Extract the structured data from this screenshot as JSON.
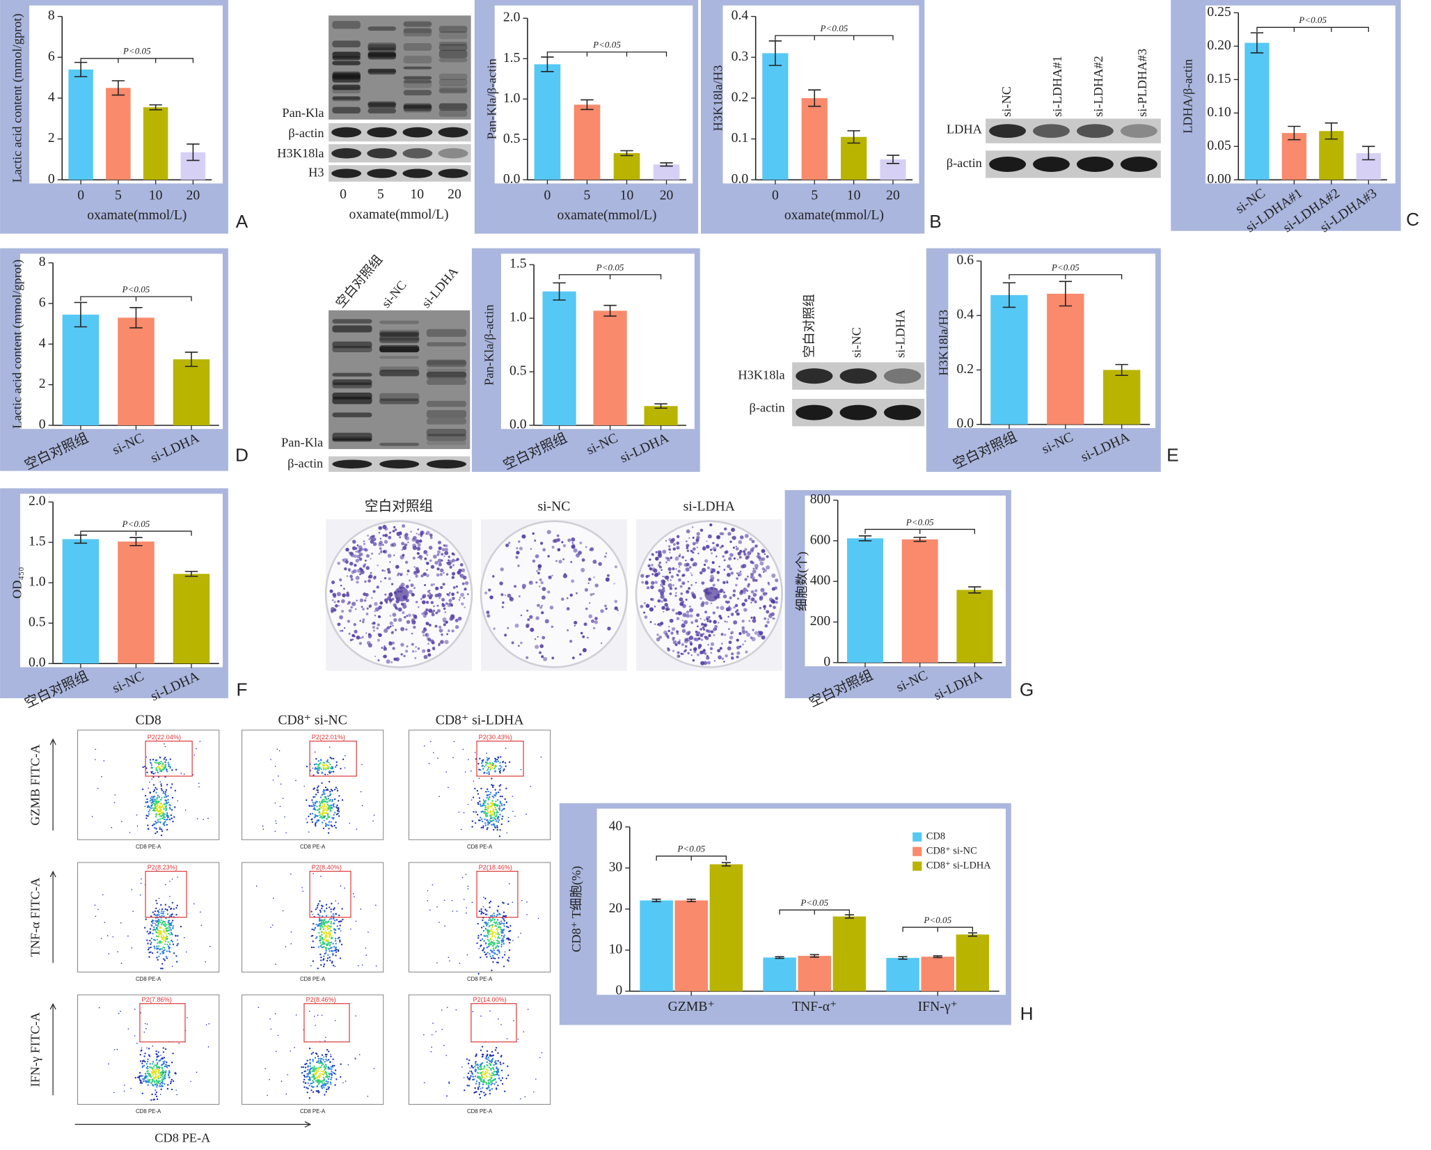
{
  "chart_data": [
    {
      "type": "bar",
      "y_label": "Lactic acid content (mmol/gprot)",
      "x_label": "oxamate(mmol/L)",
      "categories": [
        "0",
        "5",
        "10",
        "20"
      ],
      "values": [
        5.4,
        4.5,
        3.55,
        1.35
      ],
      "errors": [
        0.35,
        0.35,
        0.12,
        0.4
      ],
      "colors": [
        "#55c8f5",
        "#f98a6c",
        "#b9b400",
        "#d6d0f5"
      ],
      "ylim": [
        0,
        8
      ],
      "yticks": [
        0,
        2,
        4,
        6,
        8
      ],
      "annotation": "P<0.05"
    },
    {
      "type": "bar",
      "y_label": "Pan-Kla/β-actin",
      "x_label": "oxamate(mmol/L)",
      "categories": [
        "0",
        "5",
        "10",
        "20"
      ],
      "values": [
        1.43,
        0.93,
        0.33,
        0.19
      ],
      "errors": [
        0.09,
        0.06,
        0.03,
        0.02
      ],
      "colors": [
        "#55c8f5",
        "#f98a6c",
        "#b9b400",
        "#d6d0f5"
      ],
      "ylim": [
        0,
        2
      ],
      "yticks": [
        {
          "value": 0,
          "label": "0.0"
        },
        0.5,
        {
          "value": 1,
          "label": "1.0"
        },
        1.5,
        {
          "value": 2,
          "label": "2.0"
        }
      ],
      "annotation": "P<0.05"
    },
    {
      "type": "bar",
      "y_label": "H3K18la/H3",
      "x_label": "oxamate(mmol/L)",
      "categories": [
        "0",
        "5",
        "10",
        "20"
      ],
      "values": [
        0.31,
        0.2,
        0.105,
        0.05
      ],
      "errors": [
        0.03,
        0.02,
        0.015,
        0.01
      ],
      "colors": [
        "#55c8f5",
        "#f98a6c",
        "#b9b400",
        "#d6d0f5"
      ],
      "ylim": [
        0,
        0.4
      ],
      "yticks": [
        {
          "value": 0,
          "label": "0.0"
        },
        0.1,
        0.2,
        0.3,
        0.4
      ],
      "annotation": "P<0.05"
    },
    {
      "type": "bar",
      "y_label": "LDHA/β-actin",
      "categories": [
        "si-NC",
        "si-LDHA#1",
        "si-LDHA#2",
        "si-LDHA#3"
      ],
      "values": [
        0.205,
        0.07,
        0.073,
        0.04
      ],
      "errors": [
        0.015,
        0.01,
        0.012,
        0.01
      ],
      "colors": [
        "#55c8f5",
        "#f98a6c",
        "#b9b400",
        "#d6d0f5"
      ],
      "ylim": [
        0,
        0.25
      ],
      "yticks": [
        {
          "value": 0,
          "label": "0.00"
        },
        0.05,
        {
          "value": 0.1,
          "label": "0.10"
        },
        0.15,
        {
          "value": 0.2,
          "label": "0.20"
        },
        0.25
      ],
      "annotation": "P<0.05"
    },
    {
      "type": "bar",
      "y_label": "Lactic acid content (mmol/gprot)",
      "categories": [
        "空白对照组",
        "si-NC",
        "si-LDHA"
      ],
      "values": [
        5.45,
        5.3,
        3.25
      ],
      "errors": [
        0.6,
        0.5,
        0.35
      ],
      "colors": [
        "#55c8f5",
        "#f98a6c",
        "#b9b400"
      ],
      "ylim": [
        0,
        8
      ],
      "yticks": [
        0,
        2,
        4,
        6,
        8
      ],
      "annotation": "P<0.05"
    },
    {
      "type": "bar",
      "y_label": "Pan-Kla/β-actin",
      "categories": [
        "空白对照组",
        "si-NC",
        "si-LDHA"
      ],
      "values": [
        1.25,
        1.07,
        0.18
      ],
      "errors": [
        0.08,
        0.05,
        0.02
      ],
      "colors": [
        "#55c8f5",
        "#f98a6c",
        "#b9b400"
      ],
      "ylim": [
        0,
        1.5
      ],
      "yticks": [
        {
          "value": 0,
          "label": "0.0"
        },
        0.5,
        {
          "value": 1,
          "label": "1.0"
        },
        1.5
      ],
      "annotation": "P<0.05"
    },
    {
      "type": "bar",
      "y_label": "H3K18la/H3",
      "categories": [
        "空白对照组",
        "si-NC",
        "si-LDHA"
      ],
      "values": [
        0.475,
        0.48,
        0.2
      ],
      "errors": [
        0.045,
        0.045,
        0.02
      ],
      "colors": [
        "#55c8f5",
        "#f98a6c",
        "#b9b400"
      ],
      "ylim": [
        0,
        0.6
      ],
      "yticks": [
        {
          "value": 0,
          "label": "0.0"
        },
        0.2,
        0.4,
        0.6
      ],
      "annotation": "P<0.05"
    },
    {
      "type": "bar",
      "y_label": "OD₄₅₀",
      "categories": [
        "空白对照组",
        "si-NC",
        "si-LDHA"
      ],
      "values": [
        1.54,
        1.51,
        1.11
      ],
      "errors": [
        0.05,
        0.05,
        0.03
      ],
      "colors": [
        "#55c8f5",
        "#f98a6c",
        "#b9b400"
      ],
      "ylim": [
        0,
        2
      ],
      "yticks": [
        {
          "value": 0,
          "label": "0.0"
        },
        0.5,
        {
          "value": 1,
          "label": "1.0"
        },
        1.5,
        {
          "value": 2,
          "label": "2.0"
        }
      ],
      "annotation": "P<0.05"
    },
    {
      "type": "bar",
      "y_label": "细胞数(个)",
      "categories": [
        "空白对照组",
        "si-NC",
        "si-LDHA"
      ],
      "values": [
        612,
        607,
        358
      ],
      "errors": [
        12,
        10,
        15
      ],
      "colors": [
        "#55c8f5",
        "#f98a6c",
        "#b9b400"
      ],
      "ylim": [
        0,
        800
      ],
      "yticks": [
        0,
        200,
        400,
        600,
        800
      ],
      "annotation": "P<0.05"
    },
    {
      "type": "grouped-bar",
      "y_label": "CD8⁺ T细胞(%)",
      "categories": [
        "GZMB⁺",
        "TNF-α⁺",
        "IFN-γ⁺"
      ],
      "series": [
        {
          "name": "CD8",
          "color": "#55c8f5",
          "values": [
            22.1,
            8.2,
            8.1
          ],
          "errors": [
            0.3,
            0.2,
            0.3
          ]
        },
        {
          "name": "CD8⁺ si-NC",
          "color": "#f98a6c",
          "values": [
            22.1,
            8.6,
            8.4
          ],
          "errors": [
            0.3,
            0.3,
            0.2
          ]
        },
        {
          "name": "CD8⁺ si-LDHA",
          "color": "#b9b400",
          "values": [
            30.9,
            18.2,
            13.8
          ],
          "errors": [
            0.4,
            0.4,
            0.4
          ]
        }
      ],
      "ylim": [
        0,
        40
      ],
      "yticks": [
        0,
        10,
        20,
        30,
        40
      ],
      "legend": "upper right",
      "annotations": [
        "P<0.05",
        "P<0.05",
        "P<0.05"
      ]
    }
  ],
  "panel_labels": [
    "A",
    "B",
    "C",
    "D",
    "E",
    "F",
    "G",
    "H"
  ],
  "blots": [
    {
      "rows": [
        "Pan-Kla",
        "β-actin",
        "H3K18la",
        "H3"
      ],
      "lanes": [
        "0",
        "5",
        "10",
        "20"
      ],
      "x_label": "oxamate(mmol/L)"
    },
    {
      "rows": [
        "LDHA",
        "β-actin"
      ],
      "lanes": [
        "si-NC",
        "si-LDHA#1",
        "si-LDHA#2",
        "si-PLDHA#3"
      ]
    },
    {
      "rows": [
        "Pan-Kla",
        "β-actin"
      ],
      "lanes": [
        "空白对照组",
        "si-NC",
        "si-LDHA"
      ]
    },
    {
      "rows": [
        "H3K18la",
        "β-actin"
      ],
      "lanes": [
        "空白对照组",
        "si-NC",
        "si-LDHA"
      ]
    }
  ],
  "colony": {
    "labels": [
      "空白对照组",
      "si-NC",
      "si-LDHA"
    ]
  },
  "flow": {
    "columns": [
      "CD8",
      "CD8⁺ si-NC",
      "CD8⁺ si-LDHA"
    ],
    "rows": [
      "GZMB FITC-A",
      "TNF-α FITC-A",
      "IFN-γ FITC-A"
    ],
    "x_label": "CD8 PE-A",
    "gates": [
      [
        "P2(22.04%)",
        "P2(22.01%)",
        "P2(30.43%)"
      ],
      [
        "P2(8.23%)",
        "P2(8.40%)",
        "P2(18.46%)"
      ],
      [
        "P2(7.86%)",
        "P2(8.46%)",
        "P2(14.00%)"
      ]
    ]
  }
}
